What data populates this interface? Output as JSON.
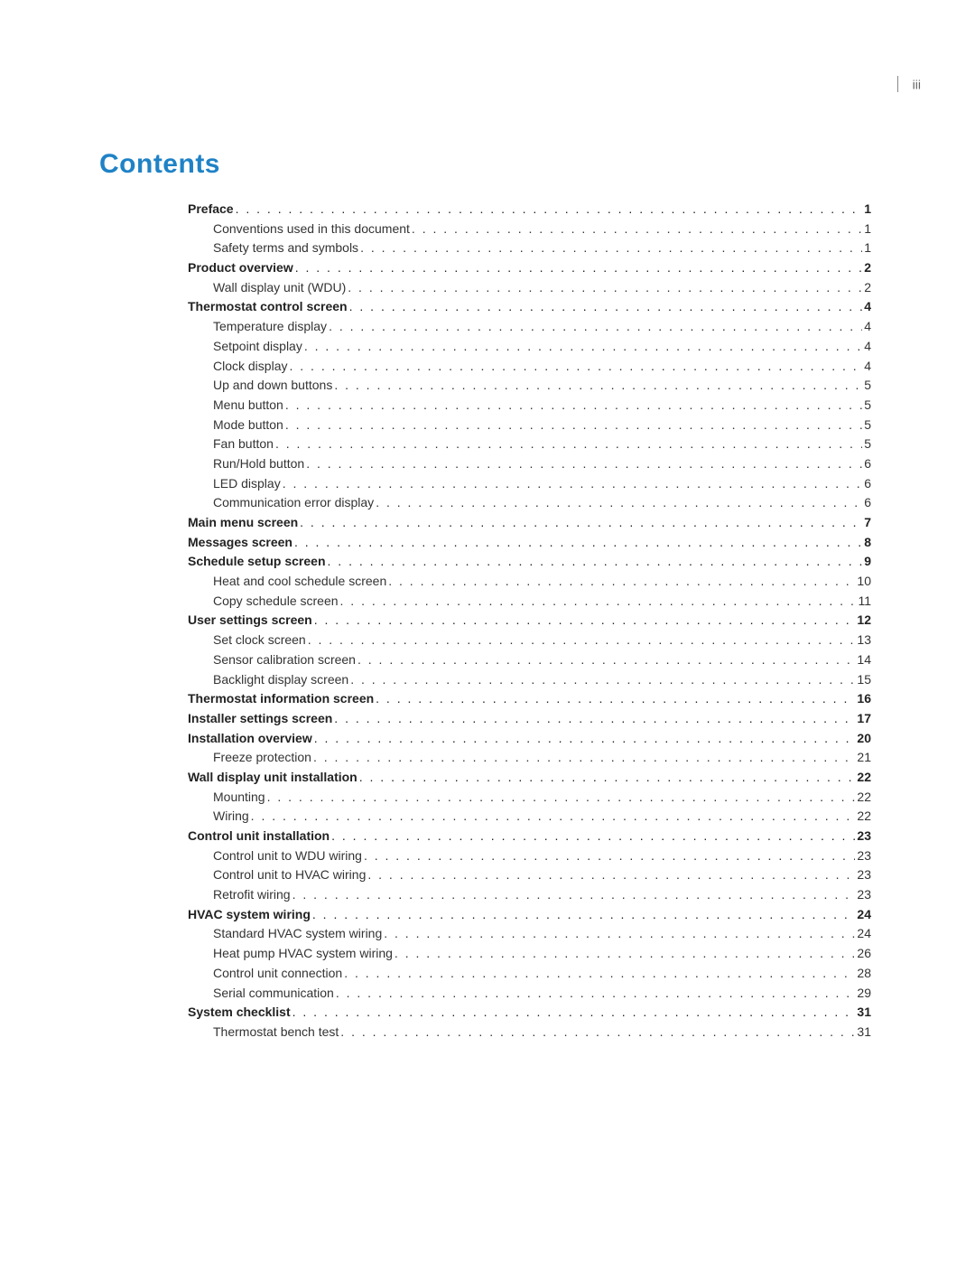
{
  "page_number_label": "iii",
  "title": "Contents",
  "colors": {
    "title_color": "#1f82c6",
    "text_color": "#333333",
    "background": "#ffffff"
  },
  "typography": {
    "title_fontsize_pt": 22,
    "body_fontsize_pt": 10.5,
    "line_height": 1.55
  },
  "toc": [
    {
      "label": "Preface",
      "page": "1",
      "level": 1,
      "bold": true
    },
    {
      "label": "Conventions used in this document",
      "page": "1",
      "level": 2,
      "bold": false
    },
    {
      "label": "Safety terms and symbols",
      "page": "1",
      "level": 2,
      "bold": false
    },
    {
      "label": "Product overview",
      "page": "2",
      "level": 1,
      "bold": true
    },
    {
      "label": "Wall display unit (WDU)",
      "page": "2",
      "level": 2,
      "bold": false
    },
    {
      "label": "Thermostat control screen",
      "page": "4",
      "level": 1,
      "bold": true
    },
    {
      "label": "Temperature display",
      "page": "4",
      "level": 2,
      "bold": false
    },
    {
      "label": "Setpoint display",
      "page": "4",
      "level": 2,
      "bold": false
    },
    {
      "label": "Clock display",
      "page": "4",
      "level": 2,
      "bold": false
    },
    {
      "label": "Up and down buttons",
      "page": "5",
      "level": 2,
      "bold": false
    },
    {
      "label": "Menu button",
      "page": "5",
      "level": 2,
      "bold": false
    },
    {
      "label": "Mode button",
      "page": "5",
      "level": 2,
      "bold": false
    },
    {
      "label": "Fan button",
      "page": "5",
      "level": 2,
      "bold": false
    },
    {
      "label": "Run/Hold button",
      "page": "6",
      "level": 2,
      "bold": false
    },
    {
      "label": "LED display",
      "page": "6",
      "level": 2,
      "bold": false
    },
    {
      "label": "Communication error display",
      "page": "6",
      "level": 2,
      "bold": false
    },
    {
      "label": "Main menu screen",
      "page": "7",
      "level": 1,
      "bold": true
    },
    {
      "label": "Messages screen",
      "page": "8",
      "level": 1,
      "bold": true
    },
    {
      "label": "Schedule setup screen",
      "page": "9",
      "level": 1,
      "bold": true
    },
    {
      "label": "Heat and cool schedule screen",
      "page": "10",
      "level": 2,
      "bold": false
    },
    {
      "label": "Copy schedule screen",
      "page": "11",
      "level": 2,
      "bold": false
    },
    {
      "label": "User settings screen",
      "page": "12",
      "level": 1,
      "bold": true
    },
    {
      "label": "Set clock screen",
      "page": "13",
      "level": 2,
      "bold": false
    },
    {
      "label": "Sensor calibration screen",
      "page": "14",
      "level": 2,
      "bold": false
    },
    {
      "label": "Backlight display screen",
      "page": "15",
      "level": 2,
      "bold": false
    },
    {
      "label": "Thermostat information screen",
      "page": "16",
      "level": 1,
      "bold": true
    },
    {
      "label": "Installer settings screen",
      "page": "17",
      "level": 1,
      "bold": true
    },
    {
      "label": "Installation overview",
      "page": "20",
      "level": 1,
      "bold": true
    },
    {
      "label": "Freeze protection",
      "page": "21",
      "level": 2,
      "bold": false
    },
    {
      "label": "Wall display unit installation",
      "page": "22",
      "level": 1,
      "bold": true
    },
    {
      "label": "Mounting",
      "page": "22",
      "level": 2,
      "bold": false
    },
    {
      "label": "Wiring",
      "page": "22",
      "level": 2,
      "bold": false
    },
    {
      "label": "Control unit installation",
      "page": "23",
      "level": 1,
      "bold": true
    },
    {
      "label": "Control unit to WDU wiring",
      "page": "23",
      "level": 2,
      "bold": false
    },
    {
      "label": "Control unit to HVAC wiring",
      "page": "23",
      "level": 2,
      "bold": false
    },
    {
      "label": "Retrofit wiring",
      "page": "23",
      "level": 2,
      "bold": false
    },
    {
      "label": "HVAC  system wiring",
      "page": "24",
      "level": 1,
      "bold": true
    },
    {
      "label": "Standard HVAC system wiring",
      "page": "24",
      "level": 2,
      "bold": false
    },
    {
      "label": "Heat pump HVAC system wiring",
      "page": "26",
      "level": 2,
      "bold": false
    },
    {
      "label": "Control unit connection",
      "page": "28",
      "level": 2,
      "bold": false
    },
    {
      "label": "Serial communication",
      "page": "29",
      "level": 2,
      "bold": false
    },
    {
      "label": "System checklist",
      "page": "31",
      "level": 1,
      "bold": true
    },
    {
      "label": "Thermostat bench test",
      "page": "31",
      "level": 2,
      "bold": false
    }
  ]
}
